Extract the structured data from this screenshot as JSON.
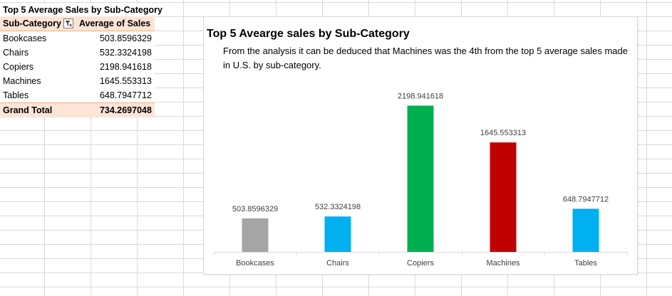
{
  "sheet": {
    "title": "Top 5 Average Sales by Sub-Category"
  },
  "pivot": {
    "headers": [
      "Sub-Category",
      "Average of Sales"
    ],
    "filter_icon": "filter-icon",
    "rows": [
      [
        "Bookcases",
        "503.8596329"
      ],
      [
        "Chairs",
        "532.3324198"
      ],
      [
        "Copiers",
        "2198.941618"
      ],
      [
        "Machines",
        "1645.553313"
      ],
      [
        "Tables",
        "648.7947712"
      ]
    ],
    "total": [
      "Grand Total",
      "734.2697048"
    ],
    "header_color": "#fce4d6"
  },
  "chart": {
    "title": "Top 5 Avearge sales by  Sub-Category",
    "subtitle": "From the analysis it can be deduced that Machines was the 4th from the top 5 average sales made in U.S. by sub-category."
  },
  "chart_data": {
    "type": "bar",
    "categories": [
      "Bookcases",
      "Chairs",
      "Copiers",
      "Machines",
      "Tables"
    ],
    "values": [
      503.8596329,
      532.3324198,
      2198.941618,
      1645.553313,
      648.7947712
    ],
    "data_labels": [
      "503.8596329",
      "532.3324198",
      "2198.941618",
      "1645.553313",
      "648.7947712"
    ],
    "colors": [
      "#a5a5a5",
      "#00b0f0",
      "#00b050",
      "#c00000",
      "#00b0f0"
    ],
    "ylim": [
      0,
      2300
    ],
    "grid": false,
    "legend": "none"
  }
}
